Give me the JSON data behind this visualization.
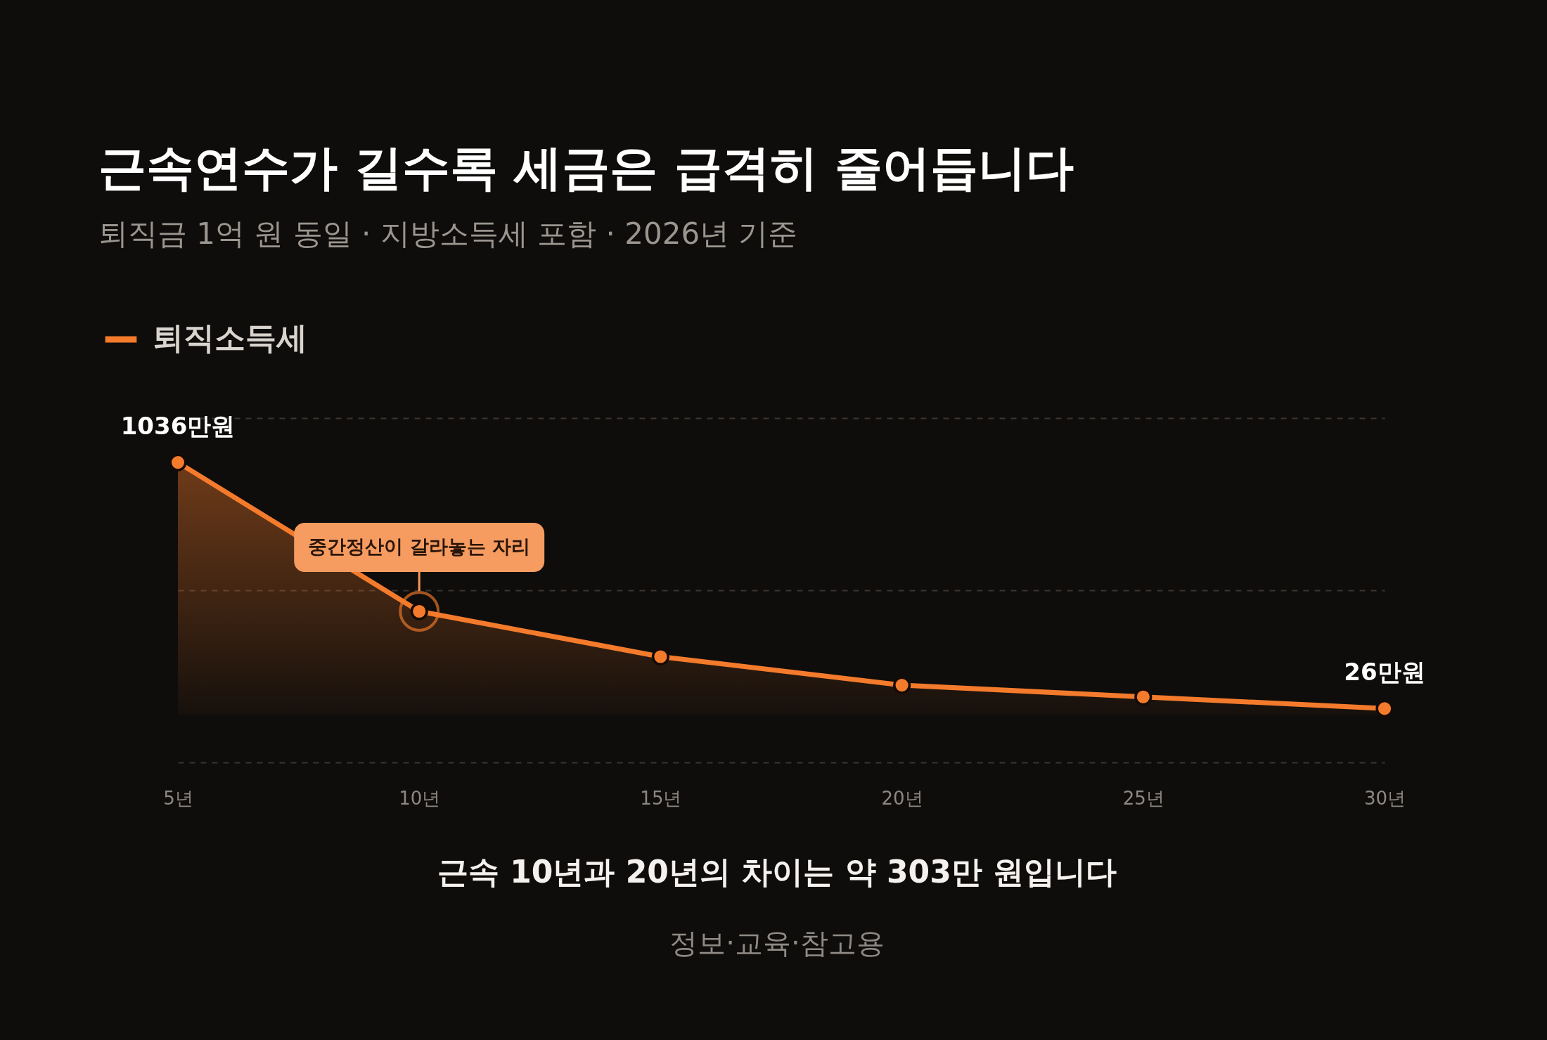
{
  "chart_data": {
    "type": "area",
    "title": "근속연수가 길수록 세금은 급격히 줄어듭니다",
    "subtitle": "퇴직금 1억 원 동일 · 지방소득세 포함 · 2026년 기준",
    "categories": [
      "5년",
      "10년",
      "15년",
      "20년",
      "25년",
      "30년"
    ],
    "series": [
      {
        "name": "퇴직소득세",
        "color": "#f47b2c",
        "values": [
          1036,
          425,
          239,
          122,
          74,
          26
        ],
        "value_labels": [
          "1036만원",
          null,
          null,
          null,
          null,
          "26만원"
        ]
      }
    ],
    "ylim": [
      -195,
      1218
    ],
    "yticks": [
      {
        "value": -195,
        "label": null
      },
      {
        "value": 511.5,
        "label": null
      },
      {
        "value": 1218,
        "label": null
      }
    ],
    "grid": "y",
    "legend": "top left",
    "marker": "circle",
    "line_style": "solid",
    "tick_labels": "x",
    "annotations": [
      "근속 10년과 20년의 차이는 약 303만 원입니다",
      "정보·교육·참고용",
      {
        "text": "중간정산이 갈라놓는 자리",
        "x": "10년",
        "y": 425
      }
    ]
  }
}
